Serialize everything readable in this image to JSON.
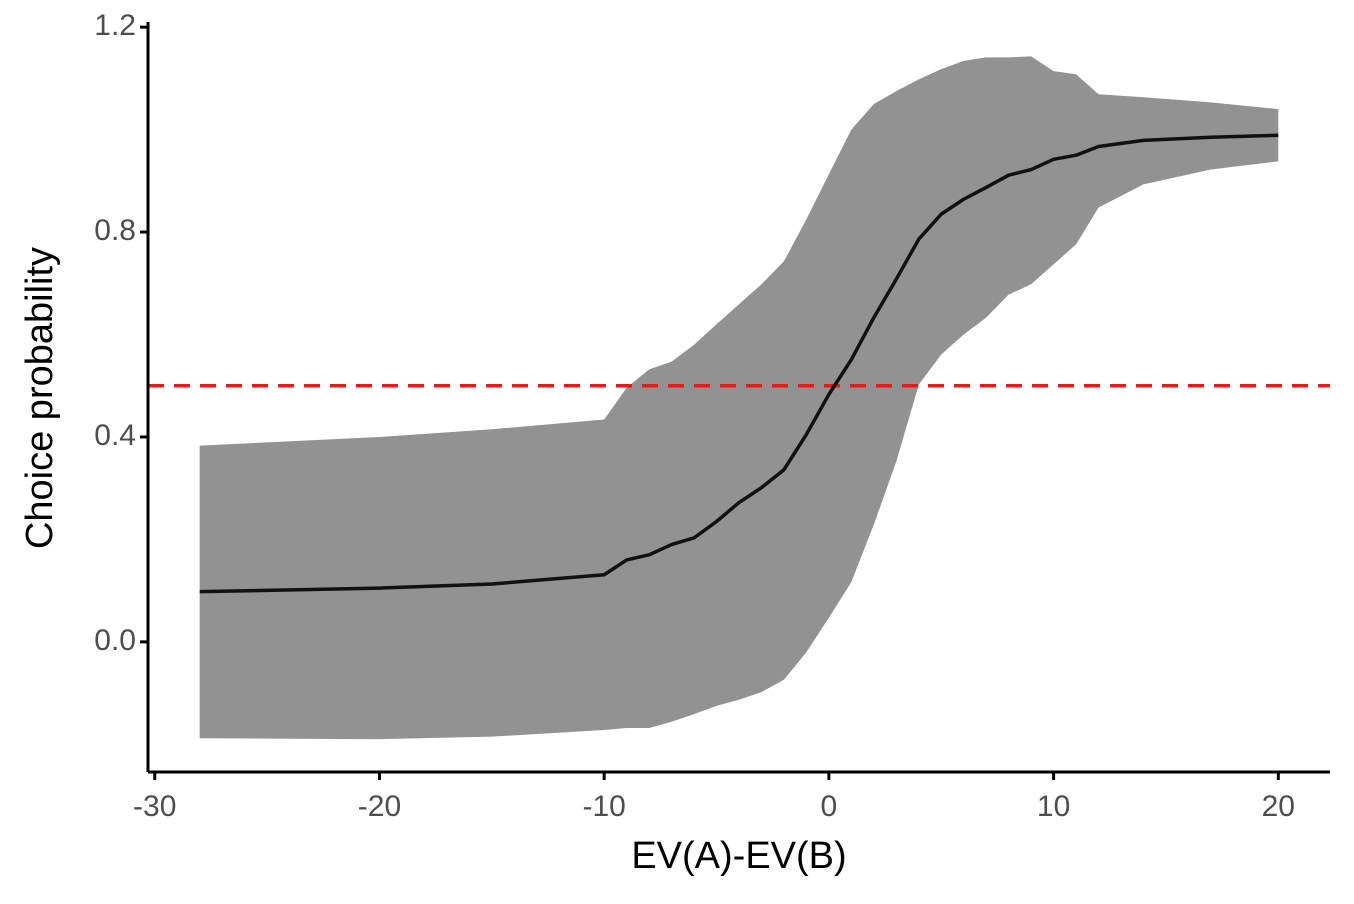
{
  "chart_data": {
    "type": "line",
    "x_label": "EV(A)-EV(B)",
    "y_label": "Choice probability",
    "x": [
      -28,
      -20,
      -15,
      -10,
      -9,
      -8,
      -7,
      -6,
      -5,
      -4,
      -3,
      -2,
      -1,
      0,
      1,
      2,
      3,
      4,
      5,
      6,
      7,
      8,
      9,
      10,
      11,
      12,
      14,
      17,
      20
    ],
    "series": [
      {
        "color": "#111111",
        "band_color": "#929292",
        "values": [
          0.098,
          0.105,
          0.113,
          0.131,
          0.16,
          0.17,
          0.19,
          0.203,
          0.235,
          0.272,
          0.301,
          0.336,
          0.405,
          0.483,
          0.551,
          0.633,
          0.708,
          0.786,
          0.835,
          0.864,
          0.887,
          0.911,
          0.922,
          0.942,
          0.95,
          0.967,
          0.979,
          0.985,
          0.989
        ],
        "lower": [
          -0.188,
          -0.19,
          -0.185,
          -0.172,
          -0.168,
          -0.168,
          -0.156,
          -0.141,
          -0.125,
          -0.113,
          -0.098,
          -0.074,
          -0.02,
          0.047,
          0.117,
          0.229,
          0.352,
          0.502,
          0.561,
          0.6,
          0.633,
          0.678,
          0.698,
          0.737,
          0.776,
          0.848,
          0.893,
          0.922,
          0.938
        ],
        "upper": [
          0.383,
          0.4,
          0.415,
          0.434,
          0.496,
          0.532,
          0.547,
          0.58,
          0.62,
          0.659,
          0.698,
          0.743,
          0.825,
          0.913,
          1.0,
          1.05,
          1.075,
          1.098,
          1.118,
          1.134,
          1.141,
          1.141,
          1.143,
          1.114,
          1.108,
          1.069,
          1.063,
          1.053,
          1.04
        ]
      }
    ],
    "hline": {
      "value": 0.5,
      "color": "#e41a1c",
      "dashed": true
    },
    "xlim": [
      -30.3,
      22.3
    ],
    "ylim": [
      -0.254,
      1.21
    ],
    "xticks": [
      -30,
      -20,
      -10,
      0,
      10,
      20
    ],
    "yticks": [
      {
        "value": 0,
        "label": "0.0"
      },
      0.4,
      0.8,
      1.2
    ],
    "grid": false
  }
}
